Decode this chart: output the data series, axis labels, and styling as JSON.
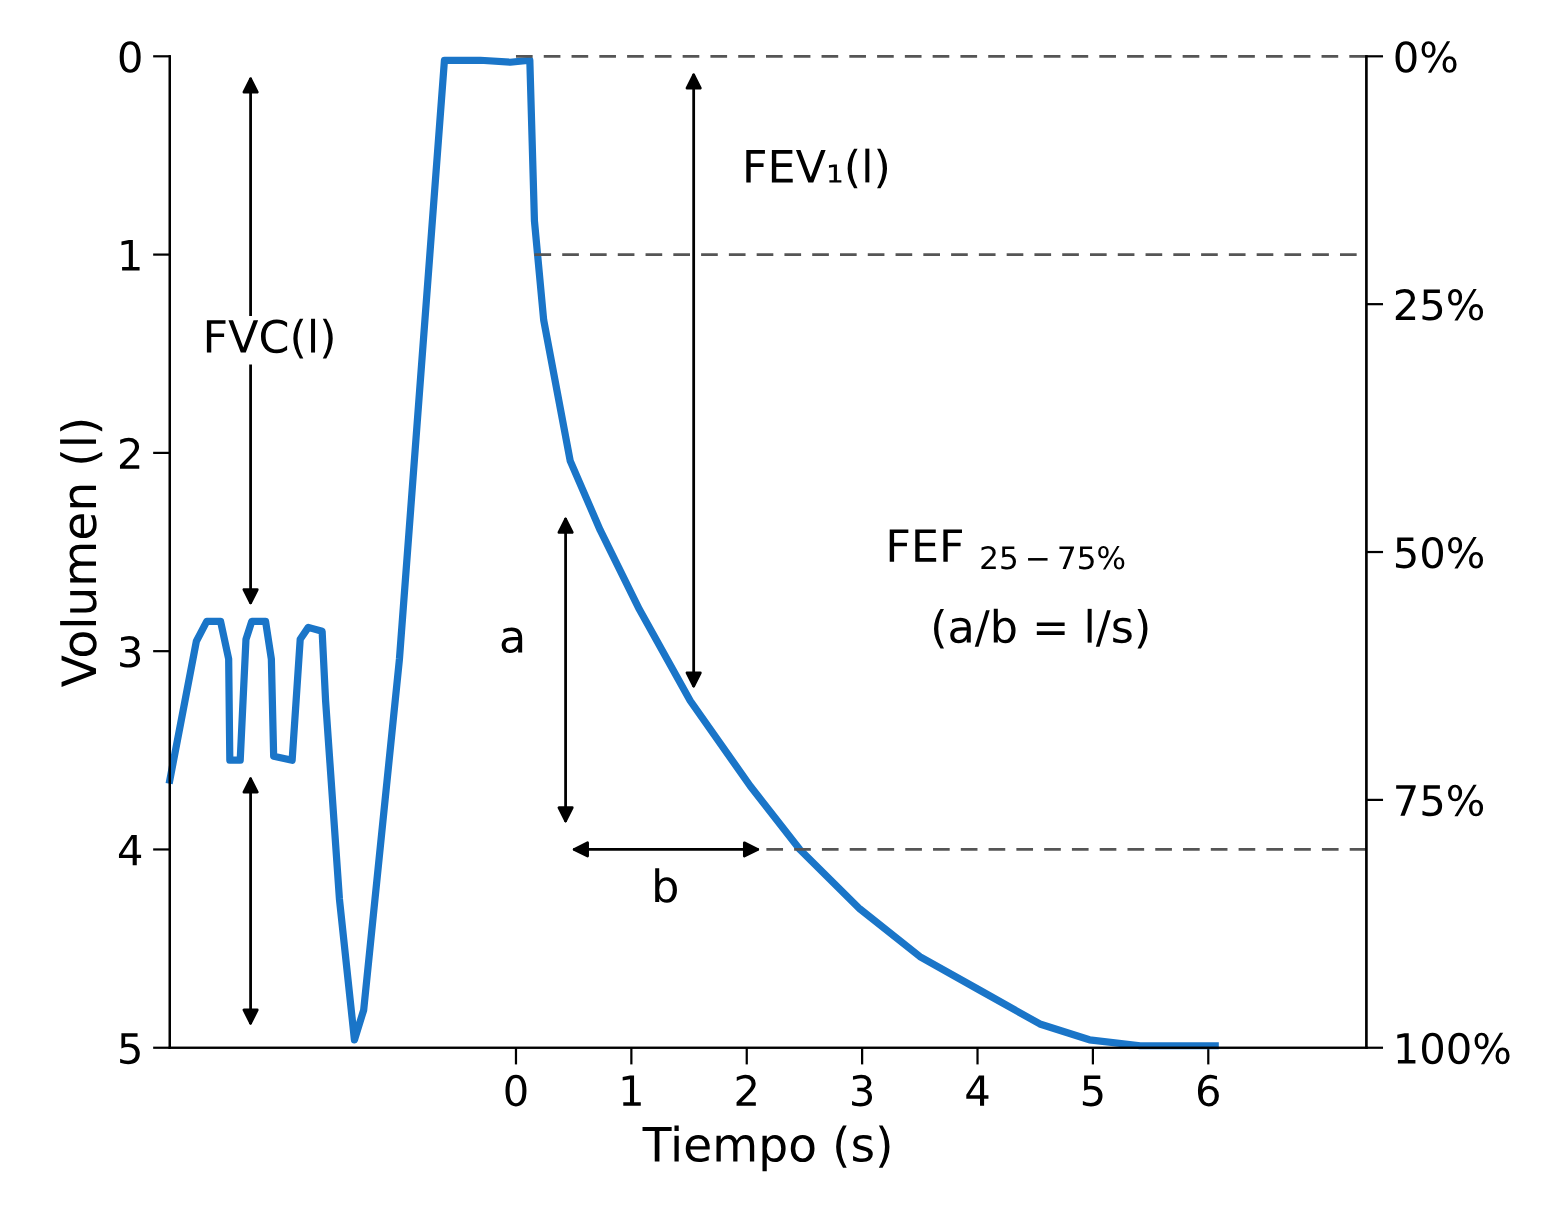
{
  "chart_data": {
    "type": "line",
    "xlabel": "Tiempo (s)",
    "ylabel": "Volumen (l)",
    "xlim": [
      -3.0,
      7.37
    ],
    "xticks": [
      0,
      1,
      2,
      3,
      4,
      5,
      6
    ],
    "ylim": [
      5,
      0
    ],
    "yticks": [
      0,
      1,
      2,
      3,
      4,
      5
    ],
    "y2lim": [
      100,
      0
    ],
    "y2ticks": [
      {
        "value": 0,
        "label": "0%"
      },
      {
        "value": 25,
        "label": "25%"
      },
      {
        "value": 50,
        "label": "50%"
      },
      {
        "value": 75,
        "label": "75%"
      },
      {
        "value": 100,
        "label": "100%"
      }
    ],
    "grid": false,
    "legend": false,
    "series": [
      {
        "color": "#1a75c8",
        "line_style": "solid",
        "x": [
          -3.0,
          -2.77,
          -2.68,
          -2.56,
          -2.49,
          -2.48,
          -2.39,
          -2.34,
          -2.29,
          -2.17,
          -2.12,
          -2.1,
          -1.94,
          -1.87,
          -1.8,
          -1.68,
          -1.65,
          -1.53,
          -1.4,
          -1.32,
          -1.01,
          -0.62,
          -0.31,
          -0.05,
          0.12,
          0.16,
          0.24,
          0.47,
          0.73,
          1.07,
          1.51,
          2.03,
          2.46,
          2.98,
          3.5,
          4.02,
          4.54,
          4.97,
          5.41,
          6.06
        ],
        "values": [
          3.65,
          2.95,
          2.85,
          2.85,
          3.04,
          3.55,
          3.55,
          2.94,
          2.85,
          2.85,
          3.04,
          3.53,
          3.55,
          2.94,
          2.88,
          2.9,
          3.25,
          4.25,
          4.96,
          4.81,
          3.04,
          0.02,
          0.02,
          0.03,
          0.02,
          0.83,
          1.33,
          2.04,
          2.39,
          2.79,
          3.25,
          3.68,
          4.0,
          4.3,
          4.54,
          4.71,
          4.88,
          4.96,
          4.99,
          4.99
        ]
      },
      {
        "color": "#555555",
        "line_style": "dashed",
        "x": [
          0.0,
          7.37
        ],
        "values": [
          0,
          0
        ]
      },
      {
        "color": "#555555",
        "line_style": "dashed",
        "x": [
          0.16,
          7.37
        ],
        "values": [
          1,
          1
        ]
      },
      {
        "color": "#555555",
        "line_style": "dashed",
        "x": [
          2.17,
          7.37
        ],
        "values": [
          4,
          4
        ]
      }
    ],
    "annotations": [
      "FVC(l)",
      "FEV₁(l)",
      "FEF $_{25−75%}$",
      "(a/b = l/s)",
      "a",
      "b"
    ]
  }
}
